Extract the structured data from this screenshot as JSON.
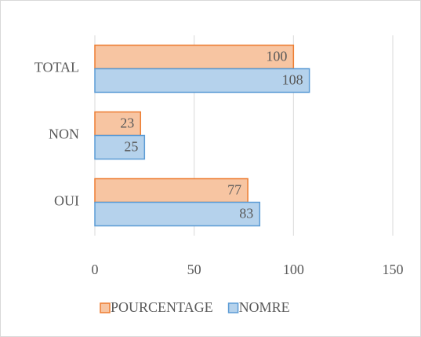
{
  "chart_data": {
    "type": "bar",
    "orientation": "horizontal",
    "categories": [
      "OUI",
      "NON",
      "TOTAL"
    ],
    "series": [
      {
        "name": "POURCENTAGE",
        "color": "#ed7d31",
        "values": [
          77,
          23,
          100
        ]
      },
      {
        "name": "NOMRE",
        "color": "#5b9bd5",
        "values": [
          83,
          25,
          108
        ]
      }
    ],
    "xlim": [
      0,
      150
    ],
    "xticks": [
      0,
      50,
      100,
      150
    ],
    "grid": true,
    "legend": "bottom"
  }
}
